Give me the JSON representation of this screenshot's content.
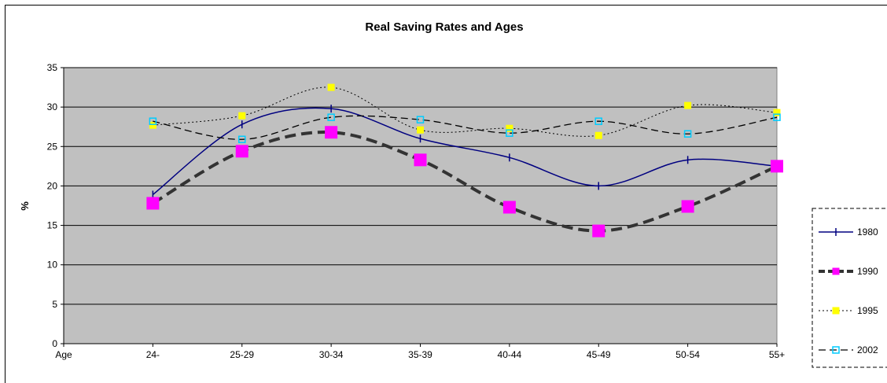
{
  "chart_data": {
    "type": "line",
    "title": "Real Saving Rates and Ages",
    "xlabel": "",
    "ylabel": "%",
    "ylim": [
      0,
      35
    ],
    "yticks": [
      0,
      5,
      10,
      15,
      20,
      25,
      30,
      35
    ],
    "categories": [
      "Age",
      "24-",
      "25-29",
      "30-34",
      "35-39",
      "40-44",
      "45-49",
      "50-54",
      "55+"
    ],
    "series": [
      {
        "name": "1980",
        "values": [
          null,
          18.9,
          27.8,
          29.8,
          26.0,
          23.6,
          20.0,
          23.3,
          22.5
        ],
        "color": "#000080",
        "line": "solid-smooth",
        "marker": "dash"
      },
      {
        "name": "1990",
        "values": [
          null,
          17.8,
          24.4,
          26.8,
          23.3,
          17.3,
          14.3,
          17.4,
          22.5
        ],
        "color": "#333333",
        "marker_color": "#ff00ff",
        "line": "thick-dashed-smooth",
        "marker": "square"
      },
      {
        "name": "1995",
        "values": [
          null,
          27.7,
          28.9,
          32.5,
          27.1,
          27.3,
          26.4,
          30.2,
          29.3
        ],
        "color": "#000000",
        "marker_color": "#ffff00",
        "line": "dotted-smooth",
        "marker": "square"
      },
      {
        "name": "2002",
        "values": [
          null,
          28.2,
          25.9,
          28.7,
          28.4,
          26.7,
          28.2,
          26.6,
          28.7
        ],
        "color": "#000000",
        "marker_color": "#00ccff",
        "line": "dashed-smooth",
        "marker": "hollow-square"
      }
    ],
    "plot_background": "#c0c0c0",
    "grid": true,
    "legend": "right"
  }
}
